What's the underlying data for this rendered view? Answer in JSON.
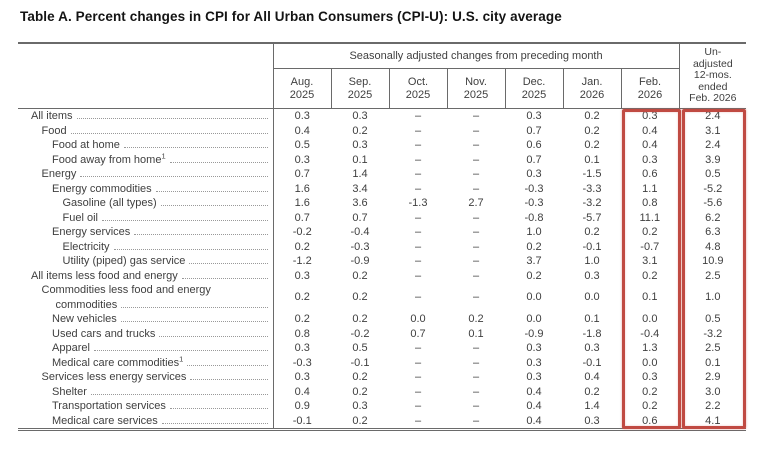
{
  "title": "Table A. Percent changes in CPI for All Urban Consumers (CPI-U): U.S. city average",
  "colors": {
    "highlight_red": "#c04a42",
    "rule_gray": "#6a6a6a",
    "text_gray": "#3f3f3f",
    "leader_dot_gray": "#999999"
  },
  "table": {
    "group_header": "Seasonally adjusted changes from preceding month",
    "unadjusted_header": "Un-\nadjusted\n12-mos.\nended\nFeb. 2026",
    "columns": [
      {
        "month": "Aug.",
        "year": "2025"
      },
      {
        "month": "Sep.",
        "year": "2025"
      },
      {
        "month": "Oct.",
        "year": "2025"
      },
      {
        "month": "Nov.",
        "year": "2025"
      },
      {
        "month": "Dec.",
        "year": "2025"
      },
      {
        "month": "Jan.",
        "year": "2026"
      },
      {
        "month": "Feb.",
        "year": "2026"
      }
    ],
    "rows": [
      {
        "label": "All items",
        "indent": 0,
        "values": [
          "0.3",
          "0.3",
          "–",
          "–",
          "0.3",
          "0.2",
          "0.3",
          "2.4"
        ]
      },
      {
        "label": "Food",
        "indent": 1,
        "values": [
          "0.4",
          "0.2",
          "–",
          "–",
          "0.7",
          "0.2",
          "0.4",
          "3.1"
        ]
      },
      {
        "label": "Food at home",
        "indent": 2,
        "values": [
          "0.5",
          "0.3",
          "–",
          "–",
          "0.6",
          "0.2",
          "0.4",
          "2.4"
        ]
      },
      {
        "label": "Food away from home",
        "sup": "1",
        "indent": 2,
        "values": [
          "0.3",
          "0.1",
          "–",
          "–",
          "0.7",
          "0.1",
          "0.3",
          "3.9"
        ]
      },
      {
        "label": "Energy",
        "indent": 1,
        "values": [
          "0.7",
          "1.4",
          "–",
          "–",
          "0.3",
          "-1.5",
          "0.6",
          "0.5"
        ]
      },
      {
        "label": "Energy commodities",
        "indent": 2,
        "values": [
          "1.6",
          "3.4",
          "–",
          "–",
          "-0.3",
          "-3.3",
          "1.1",
          "-5.2"
        ]
      },
      {
        "label": "Gasoline (all types)",
        "indent": 3,
        "values": [
          "1.6",
          "3.6",
          "-1.3",
          "2.7",
          "-0.3",
          "-3.2",
          "0.8",
          "-5.6"
        ]
      },
      {
        "label": "Fuel oil",
        "indent": 3,
        "values": [
          "0.7",
          "0.7",
          "–",
          "–",
          "-0.8",
          "-5.7",
          "11.1",
          "6.2"
        ]
      },
      {
        "label": "Energy services",
        "indent": 2,
        "values": [
          "-0.2",
          "-0.4",
          "–",
          "–",
          "1.0",
          "0.2",
          "0.2",
          "6.3"
        ]
      },
      {
        "label": "Electricity",
        "indent": 3,
        "values": [
          "0.2",
          "-0.3",
          "–",
          "–",
          "0.2",
          "-0.1",
          "-0.7",
          "4.8"
        ]
      },
      {
        "label": "Utility (piped) gas service",
        "indent": 3,
        "values": [
          "-1.2",
          "-0.9",
          "–",
          "–",
          "3.7",
          "1.0",
          "3.1",
          "10.9"
        ]
      },
      {
        "label": "All items less food and energy",
        "indent": 0,
        "values": [
          "0.3",
          "0.2",
          "–",
          "–",
          "0.2",
          "0.3",
          "0.2",
          "2.5"
        ]
      },
      {
        "label": "Commodities less food and energy",
        "label2": "commodities",
        "indent": 1,
        "values": [
          "0.2",
          "0.2",
          "–",
          "–",
          "0.0",
          "0.0",
          "0.1",
          "1.0"
        ]
      },
      {
        "label": "New vehicles",
        "indent": 2,
        "values": [
          "0.2",
          "0.2",
          "0.0",
          "0.2",
          "0.0",
          "0.1",
          "0.0",
          "0.5"
        ]
      },
      {
        "label": "Used cars and trucks",
        "indent": 2,
        "values": [
          "0.8",
          "-0.2",
          "0.7",
          "0.1",
          "-0.9",
          "-1.8",
          "-0.4",
          "-3.2"
        ]
      },
      {
        "label": "Apparel",
        "indent": 2,
        "values": [
          "0.3",
          "0.5",
          "–",
          "–",
          "0.3",
          "0.3",
          "1.3",
          "2.5"
        ]
      },
      {
        "label": "Medical care commodities",
        "sup": "1",
        "indent": 2,
        "values": [
          "-0.3",
          "-0.1",
          "–",
          "–",
          "0.3",
          "-0.1",
          "0.0",
          "0.1"
        ]
      },
      {
        "label": "Services less energy services",
        "indent": 1,
        "values": [
          "0.3",
          "0.2",
          "–",
          "–",
          "0.3",
          "0.4",
          "0.3",
          "2.9"
        ]
      },
      {
        "label": "Shelter",
        "indent": 2,
        "values": [
          "0.4",
          "0.2",
          "–",
          "–",
          "0.4",
          "0.2",
          "0.2",
          "3.0"
        ]
      },
      {
        "label": "Transportation services",
        "indent": 2,
        "values": [
          "0.9",
          "0.3",
          "–",
          "–",
          "0.4",
          "1.4",
          "0.2",
          "2.2"
        ]
      },
      {
        "label": "Medical care services",
        "indent": 2,
        "values": [
          "-0.1",
          "0.2",
          "–",
          "–",
          "0.4",
          "0.3",
          "0.6",
          "4.1"
        ]
      }
    ]
  },
  "annotations": {
    "feb_2026_box": "highlight around Feb. 2026 column",
    "unadjusted_box": "highlight around unadjusted 12-month column"
  }
}
